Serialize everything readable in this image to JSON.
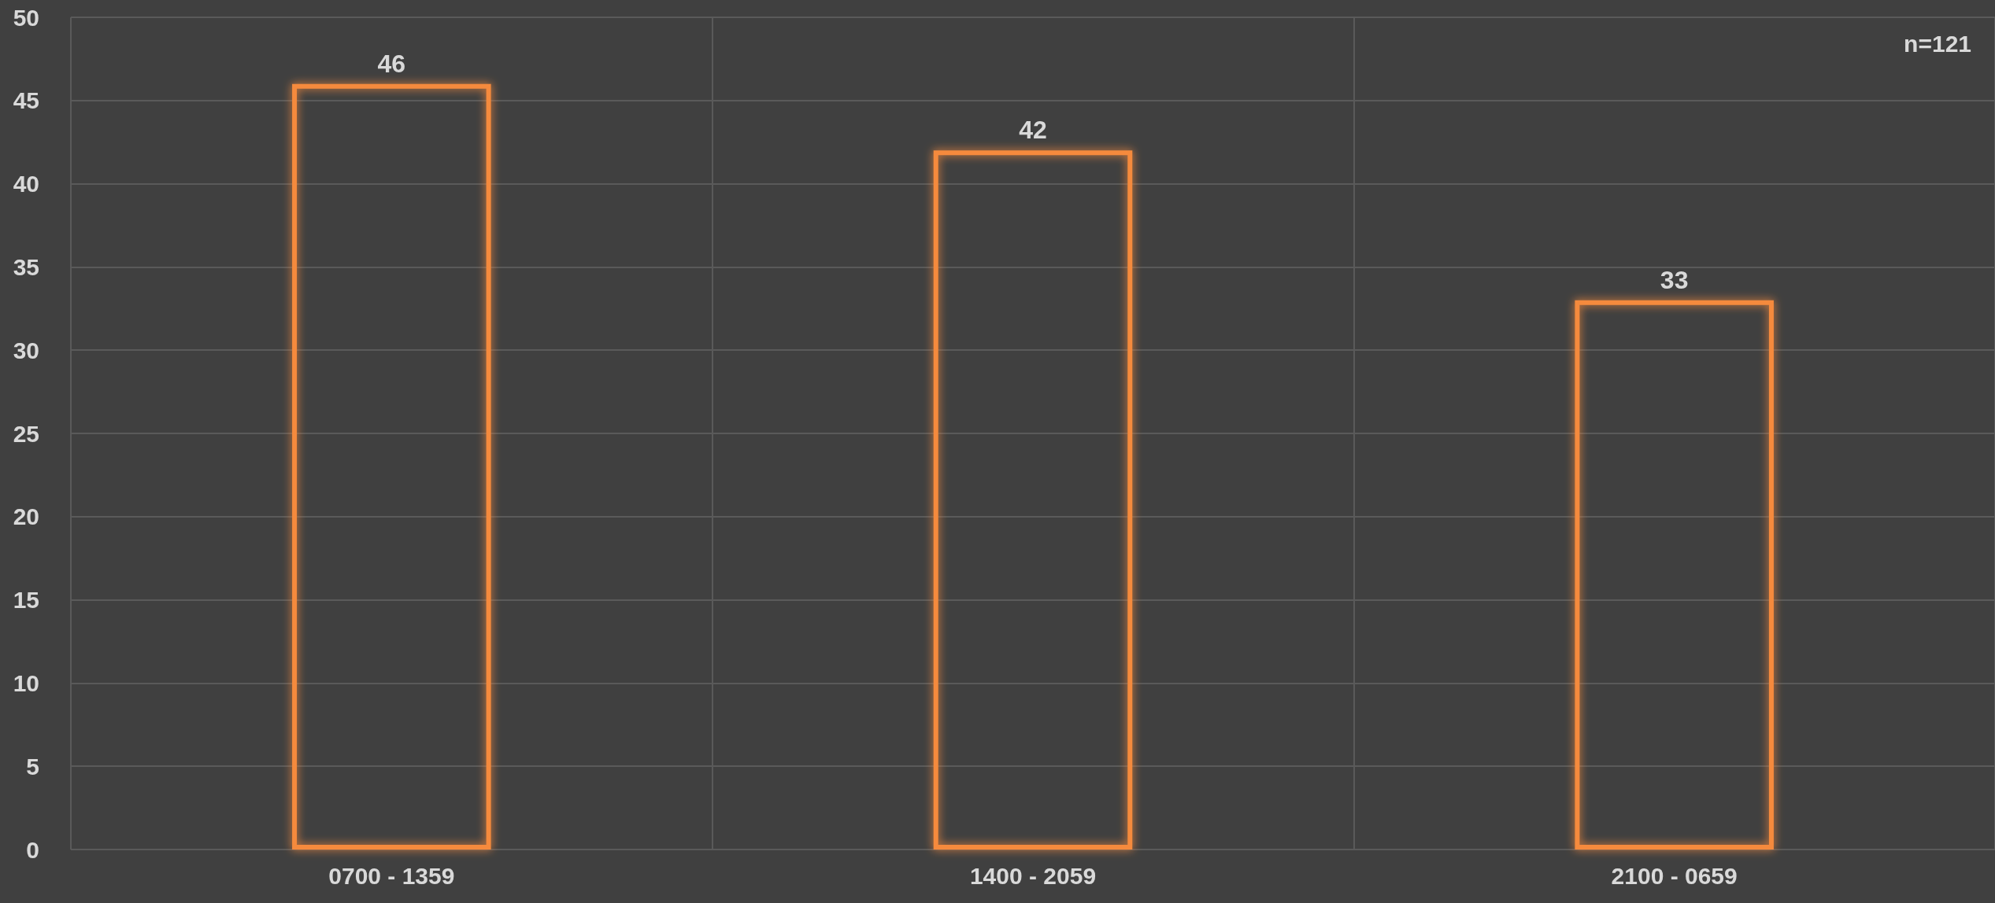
{
  "chart_data": {
    "type": "bar",
    "categories": [
      "0700 - 1359",
      "1400 - 2059",
      "2100 - 0659"
    ],
    "values": [
      46,
      42,
      33
    ],
    "color": "#f58a3c",
    "ylim": [
      0,
      50
    ],
    "yticks": [
      0,
      5,
      10,
      15,
      20,
      25,
      30,
      35,
      40,
      45,
      50
    ],
    "grid": true,
    "data_labels": true,
    "annotations": [
      "n=121"
    ]
  }
}
